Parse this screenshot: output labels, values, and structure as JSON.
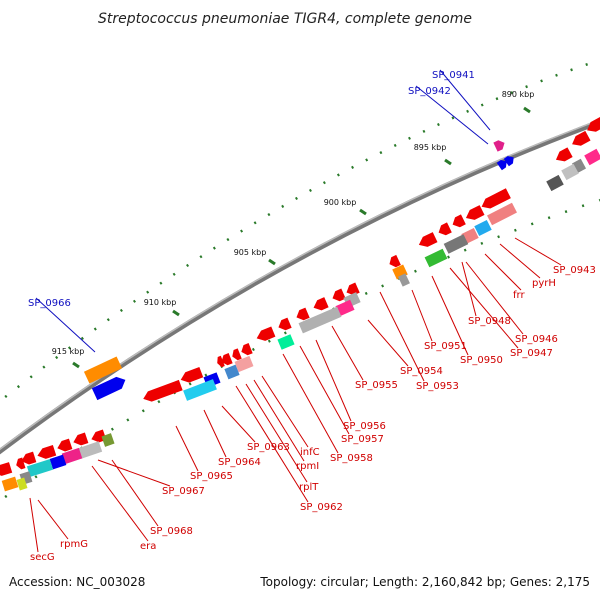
{
  "title": "Streptococcus pneumoniae TIGR4, complete genome",
  "footer": {
    "accession": "Accession: NC_003028",
    "summary": "Topology: circular; Length: 2,160,842 bp; Genes: 2,175"
  },
  "colors": {
    "backbone": "#777777",
    "tick": "#2a7a2a",
    "forward_label": "#1010c0",
    "reverse_label": "#d00000"
  },
  "ticks": [
    {
      "label": "890 kbp"
    },
    {
      "label": "895 kbp"
    },
    {
      "label": "900 kbp"
    },
    {
      "label": "905 kbp"
    },
    {
      "label": "910 kbp"
    },
    {
      "label": "915 kbp"
    }
  ],
  "labels": [
    {
      "text": "SP_0941",
      "strand": "forward"
    },
    {
      "text": "SP_0942",
      "strand": "forward"
    },
    {
      "text": "SP_0966",
      "strand": "forward"
    },
    {
      "text": "SP_0943",
      "strand": "reverse"
    },
    {
      "text": "pyrH",
      "strand": "reverse"
    },
    {
      "text": "frr",
      "strand": "reverse"
    },
    {
      "text": "SP_0946",
      "strand": "reverse"
    },
    {
      "text": "SP_0947",
      "strand": "reverse"
    },
    {
      "text": "SP_0948",
      "strand": "reverse"
    },
    {
      "text": "SP_0950",
      "strand": "reverse"
    },
    {
      "text": "SP_0951",
      "strand": "reverse"
    },
    {
      "text": "SP_0953",
      "strand": "reverse"
    },
    {
      "text": "SP_0954",
      "strand": "reverse"
    },
    {
      "text": "SP_0955",
      "strand": "reverse"
    },
    {
      "text": "SP_0956",
      "strand": "reverse"
    },
    {
      "text": "SP_0957",
      "strand": "reverse"
    },
    {
      "text": "SP_0958",
      "strand": "reverse"
    },
    {
      "text": "infC",
      "strand": "reverse"
    },
    {
      "text": "rpmI",
      "strand": "reverse"
    },
    {
      "text": "rplT",
      "strand": "reverse"
    },
    {
      "text": "SP_0962",
      "strand": "reverse"
    },
    {
      "text": "SP_0963",
      "strand": "reverse"
    },
    {
      "text": "SP_0964",
      "strand": "reverse"
    },
    {
      "text": "SP_0965",
      "strand": "reverse"
    },
    {
      "text": "SP_0967",
      "strand": "reverse"
    },
    {
      "text": "SP_0968",
      "strand": "reverse"
    },
    {
      "text": "era",
      "strand": "reverse"
    },
    {
      "text": "rpmG",
      "strand": "reverse"
    },
    {
      "text": "secG",
      "strand": "reverse"
    }
  ]
}
